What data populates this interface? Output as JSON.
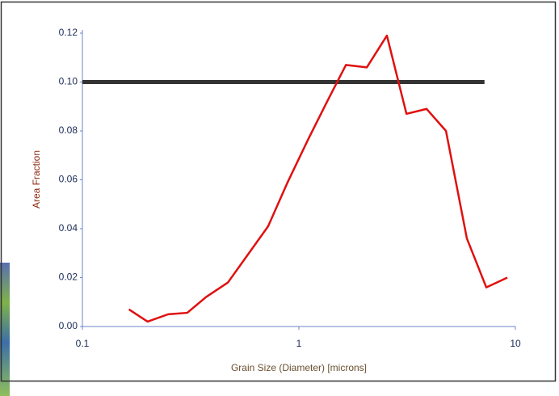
{
  "chart_data": {
    "type": "line",
    "log_x": true,
    "x_label": "Grain Size (Diameter) [microns]",
    "y_label": "Area Fraction",
    "x": [
      0.164,
      0.2,
      0.249,
      0.305,
      0.372,
      0.47,
      0.577,
      0.721,
      0.887,
      1.11,
      1.35,
      1.65,
      2.06,
      2.55,
      3.14,
      3.89,
      4.78,
      5.97,
      7.34,
      9.18
    ],
    "series": [
      {
        "color": "#e01010",
        "values": [
          0.007,
          0.002,
          0.005,
          0.0056,
          0.012,
          0.018,
          0.029,
          0.041,
          0.059,
          0.077,
          0.092,
          0.107,
          0.106,
          0.119,
          0.087,
          0.089,
          0.08,
          0.036,
          0.016,
          0.02
        ]
      }
    ],
    "hline": {
      "value": 0.1,
      "xmax": 7.2,
      "color": "#333333"
    },
    "xlim": [
      0.1,
      10
    ],
    "xticks": [
      0.1,
      1,
      10
    ],
    "ylim": [
      0,
      0.12
    ],
    "yticks": [
      {
        "value": 0,
        "label": "0.00"
      },
      0.02,
      0.04,
      0.06,
      0.08,
      {
        "value": 0.1,
        "label": "0.10"
      },
      0.12
    ]
  }
}
